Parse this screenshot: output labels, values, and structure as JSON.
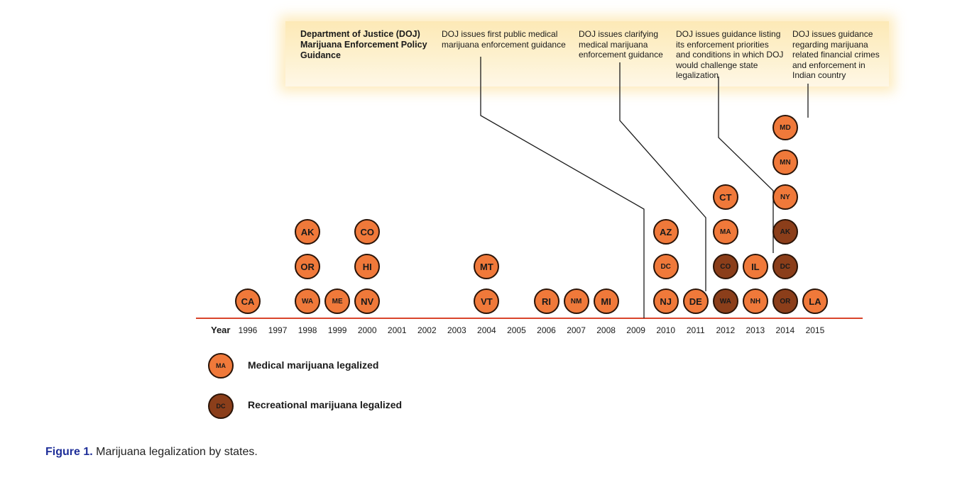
{
  "banner": {
    "title": "Department of Justice (DOJ) Marijuana Enforcement Policy Guidance",
    "notes": [
      {
        "year": "2009",
        "text": "DOJ  issues first public medical marijuana enforcement guidance"
      },
      {
        "year": "2011",
        "text": "DOJ  issues clarifying medical marijuana enforcement guidance"
      },
      {
        "year": "2013",
        "text": "DOJ issues guidance listing its enforcement priorities and conditions in which DOJ would challenge state legalization"
      },
      {
        "year": "2014",
        "text": "DOJ  issues guidance regarding marijuana related financial crimes and enforcement in Indian country"
      }
    ]
  },
  "axis": {
    "label": "Year",
    "years": [
      "1996",
      "1997",
      "1998",
      "1999",
      "2000",
      "2001",
      "2002",
      "2003",
      "2004",
      "2005",
      "2006",
      "2007",
      "2008",
      "2009",
      "2010",
      "2011",
      "2012",
      "2013",
      "2014",
      "2015"
    ]
  },
  "events": [
    {
      "year": "1996",
      "stack": [
        {
          "state": "CA",
          "type": "medical"
        }
      ]
    },
    {
      "year": "1998",
      "stack": [
        {
          "state": "WA",
          "type": "medical"
        },
        {
          "state": "OR",
          "type": "medical"
        },
        {
          "state": "AK",
          "type": "medical"
        }
      ]
    },
    {
      "year": "1999",
      "stack": [
        {
          "state": "ME",
          "type": "medical"
        }
      ]
    },
    {
      "year": "2000",
      "stack": [
        {
          "state": "NV",
          "type": "medical"
        },
        {
          "state": "HI",
          "type": "medical"
        },
        {
          "state": "CO",
          "type": "medical"
        }
      ]
    },
    {
      "year": "2004",
      "stack": [
        {
          "state": "VT",
          "type": "medical"
        },
        {
          "state": "MT",
          "type": "medical"
        }
      ]
    },
    {
      "year": "2006",
      "stack": [
        {
          "state": "RI",
          "type": "medical"
        }
      ]
    },
    {
      "year": "2007",
      "stack": [
        {
          "state": "NM",
          "type": "medical"
        }
      ]
    },
    {
      "year": "2008",
      "stack": [
        {
          "state": "MI",
          "type": "medical"
        }
      ]
    },
    {
      "year": "2010",
      "stack": [
        {
          "state": "NJ",
          "type": "medical"
        },
        {
          "state": "DC",
          "type": "medical"
        },
        {
          "state": "AZ",
          "type": "medical"
        }
      ]
    },
    {
      "year": "2011",
      "stack": [
        {
          "state": "DE",
          "type": "medical"
        }
      ]
    },
    {
      "year": "2012",
      "stack": [
        {
          "state": "WA",
          "type": "recreational"
        },
        {
          "state": "CO",
          "type": "recreational"
        },
        {
          "state": "MA",
          "type": "medical"
        },
        {
          "state": "CT",
          "type": "medical"
        }
      ]
    },
    {
      "year": "2013",
      "stack": [
        {
          "state": "NH",
          "type": "medical"
        },
        {
          "state": "IL",
          "type": "medical"
        }
      ]
    },
    {
      "year": "2014",
      "stack": [
        {
          "state": "OR",
          "type": "recreational"
        },
        {
          "state": "DC",
          "type": "recreational"
        },
        {
          "state": "AK",
          "type": "recreational"
        },
        {
          "state": "NY",
          "type": "medical"
        },
        {
          "state": "MN",
          "type": "medical"
        },
        {
          "state": "MD",
          "type": "medical"
        }
      ]
    },
    {
      "year": "2015",
      "stack": [
        {
          "state": "LA",
          "type": "medical"
        }
      ]
    }
  ],
  "legend": [
    {
      "sample": "MA",
      "label": "Medical marijuana legalized",
      "type": "medical"
    },
    {
      "sample": "DC",
      "label": "Recreational marijuana legalized",
      "type": "recreational"
    }
  ],
  "caption": {
    "label": "Figure 1.",
    "text": "Marijuana legalization by states."
  },
  "colors": {
    "medical": "#f0793a",
    "recreational": "#8b3e1a",
    "axis_line": "#d9452c",
    "connector": "#1a1a1a"
  }
}
